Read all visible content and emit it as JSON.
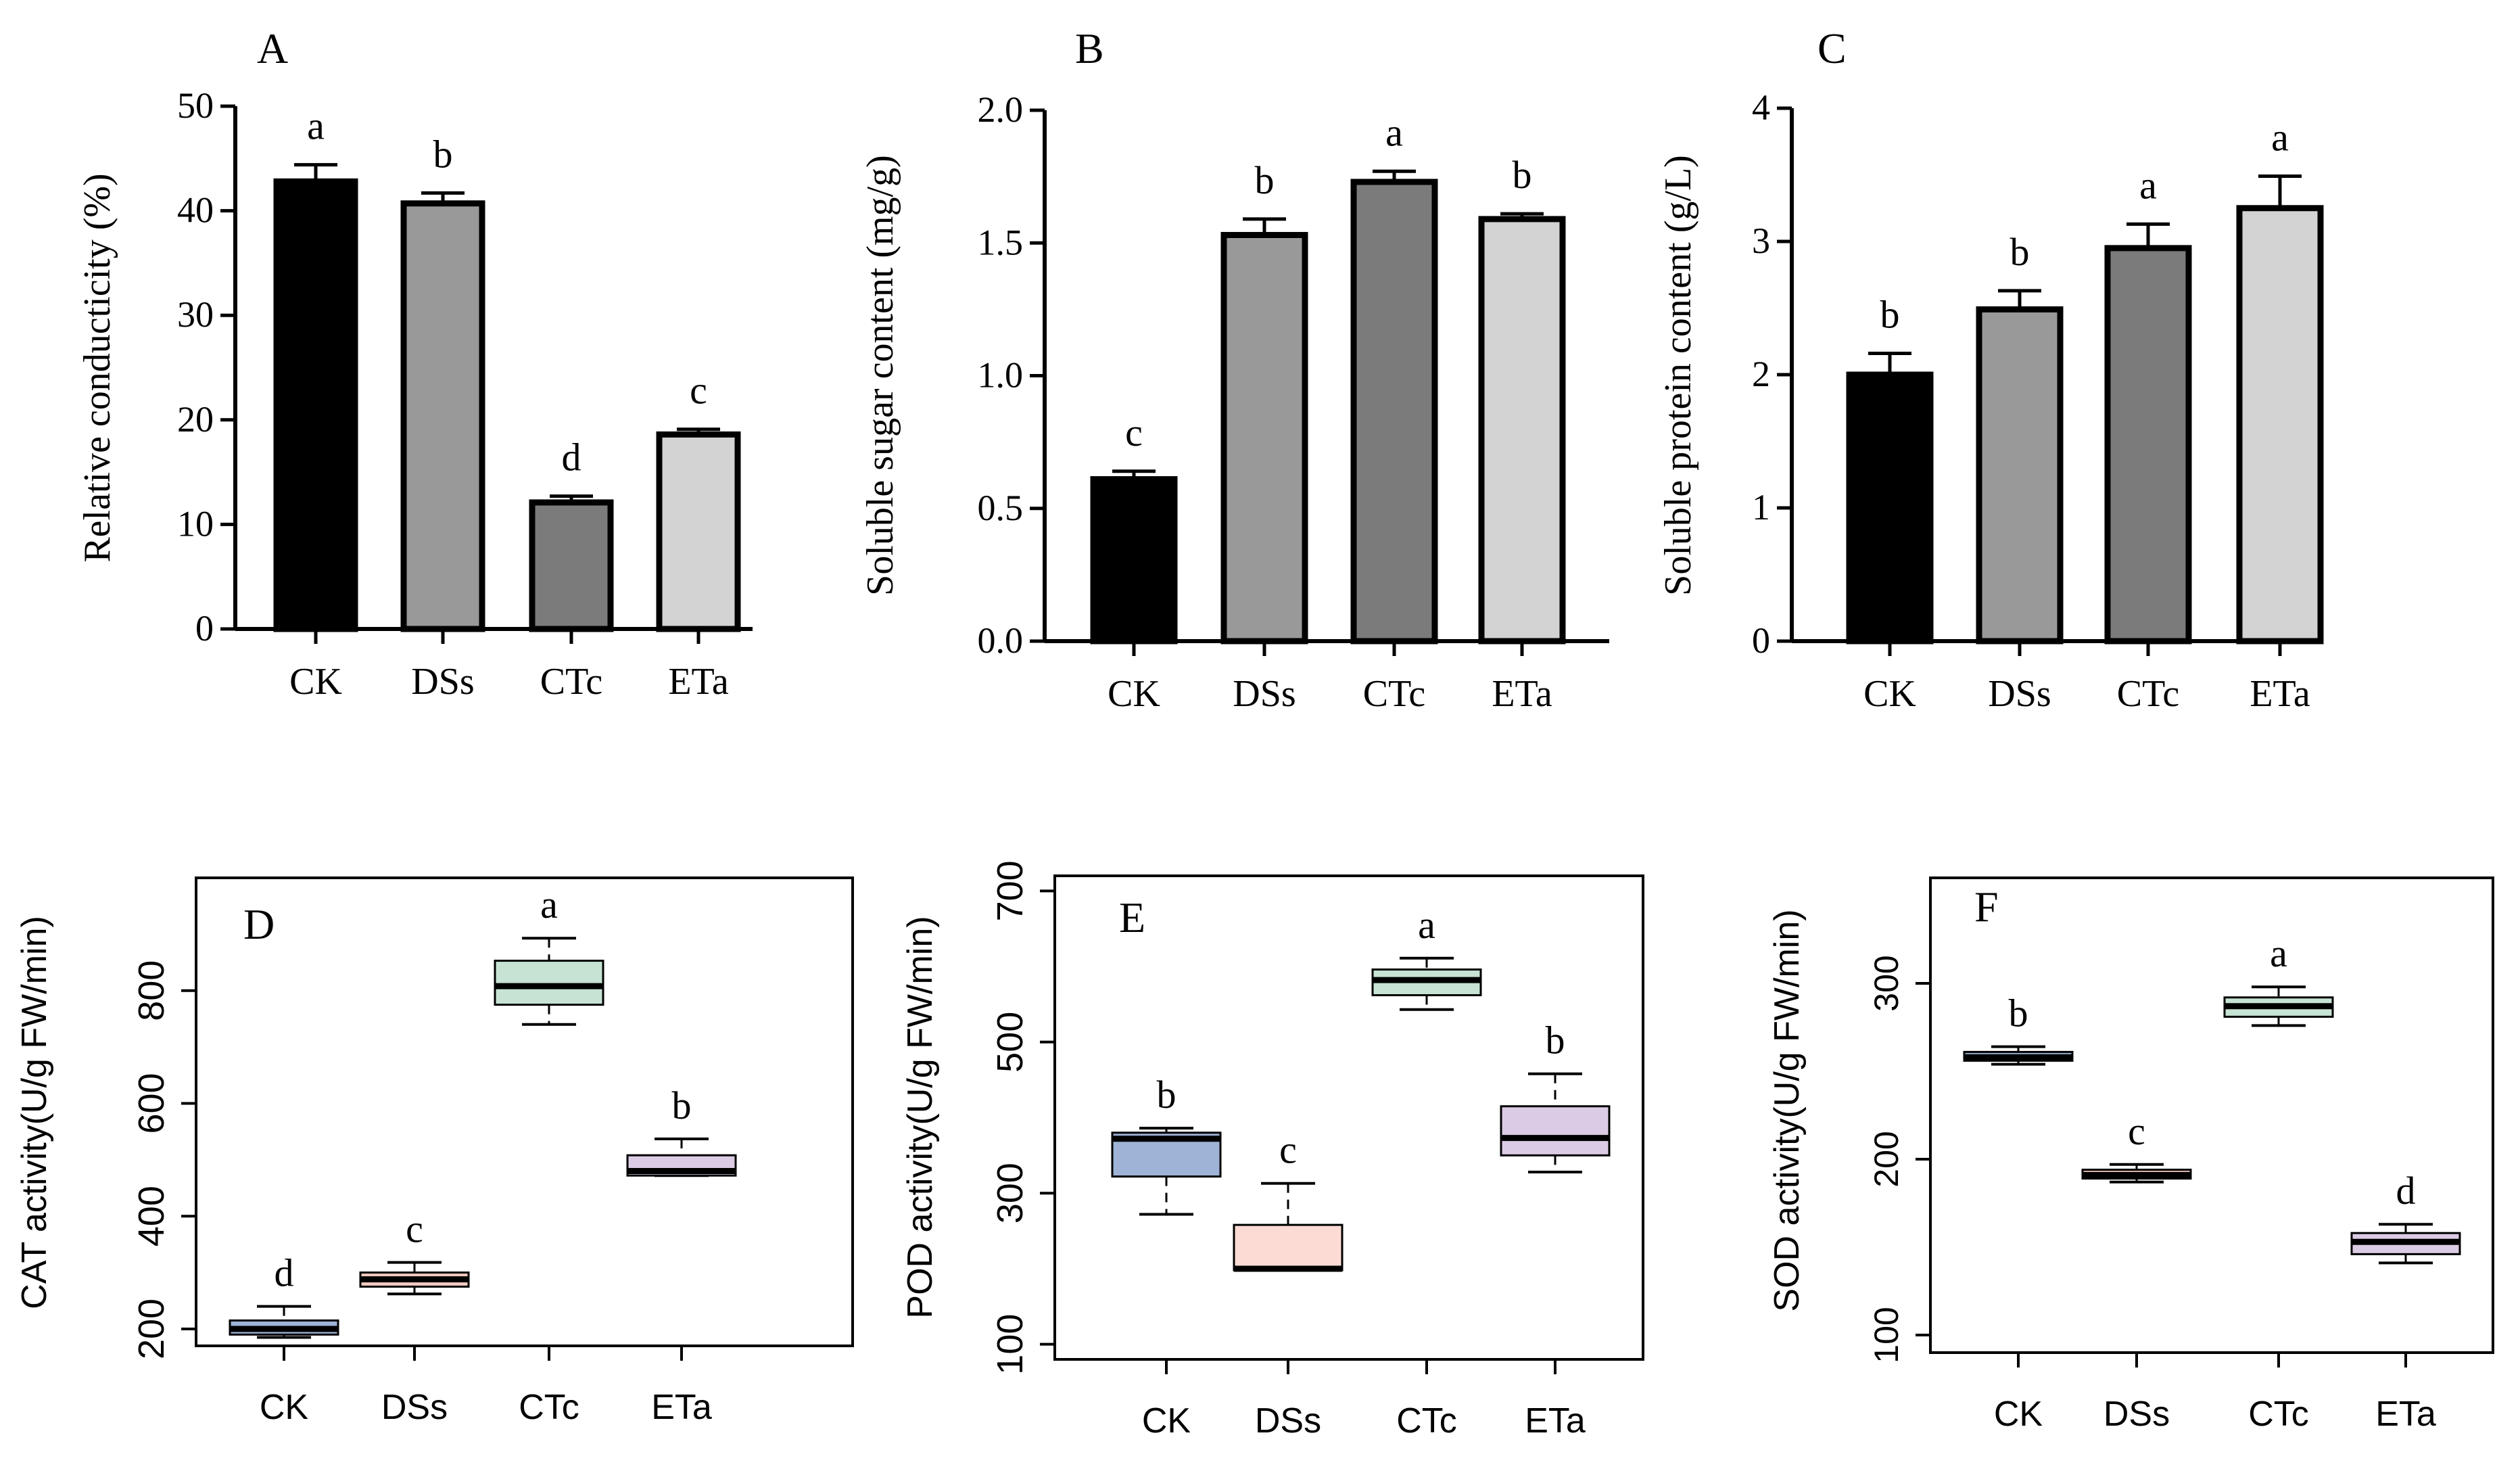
{
  "chart_data": [
    {
      "type": "bar",
      "panel": "A",
      "ylabel": "Relative conducticity (%)",
      "xlabel": "",
      "categories": [
        "CK",
        "DSs",
        "CTc",
        "ETa"
      ],
      "values": [
        42.8,
        40.7,
        12.1,
        18.6
      ],
      "errors": [
        1.6,
        1.0,
        0.6,
        0.5
      ],
      "letters": [
        "a",
        "b",
        "d",
        "c"
      ],
      "colors": [
        "#000000",
        "#999999",
        "#7b7b7b",
        "#d3d3d3"
      ],
      "ylim": [
        0,
        50
      ],
      "yticks": [
        "0",
        "10",
        "20",
        "30",
        "40",
        "50"
      ],
      "ytick_values": [
        0,
        10,
        20,
        30,
        40,
        50
      ]
    },
    {
      "type": "bar",
      "panel": "B",
      "ylabel": "Soluble sugar content (mg/g)",
      "xlabel": "",
      "categories": [
        "CK",
        "DSs",
        "CTc",
        "ETa"
      ],
      "values": [
        0.61,
        1.53,
        1.73,
        1.59
      ],
      "errors": [
        0.03,
        0.06,
        0.04,
        0.02
      ],
      "letters": [
        "c",
        "b",
        "a",
        "b"
      ],
      "colors": [
        "#000000",
        "#999999",
        "#7b7b7b",
        "#d3d3d3"
      ],
      "ylim": [
        0,
        2.0
      ],
      "yticks": [
        "0.0",
        "0.5",
        "1.0",
        "1.5",
        "2.0"
      ],
      "ytick_values": [
        0,
        0.5,
        1.0,
        1.5,
        2.0
      ]
    },
    {
      "type": "bar",
      "panel": "C",
      "ylabel": "Soluble protein content (g/L)",
      "xlabel": "",
      "categories": [
        "CK",
        "DSs",
        "CTc",
        "ETa"
      ],
      "values": [
        2.0,
        2.49,
        2.95,
        3.25
      ],
      "errors": [
        0.16,
        0.14,
        0.18,
        0.24
      ],
      "letters": [
        "b",
        "b",
        "a",
        "a"
      ],
      "colors": [
        "#000000",
        "#999999",
        "#7b7b7b",
        "#d3d3d3"
      ],
      "ylim": [
        0,
        4
      ],
      "yticks": [
        "0",
        "1",
        "2",
        "3",
        "4"
      ],
      "ytick_values": [
        0,
        1,
        2,
        3,
        4
      ]
    },
    {
      "type": "box",
      "panel": "D",
      "ylabel": "CAT activity(U/g FW/min)",
      "xlabel": "",
      "categories": [
        "CK",
        "DSs",
        "CTc",
        "ETa"
      ],
      "boxes": [
        {
          "min": 185,
          "q1": 190,
          "median": 200,
          "q3": 215,
          "max": 240
        },
        {
          "min": 262,
          "q1": 275,
          "median": 288,
          "q3": 300,
          "max": 318
        },
        {
          "min": 740,
          "q1": 775,
          "median": 808,
          "q3": 853,
          "max": 893
        },
        {
          "min": 472,
          "q1": 472,
          "median": 480,
          "q3": 508,
          "max": 537
        }
      ],
      "letters": [
        "d",
        "c",
        "a",
        "b"
      ],
      "colors": [
        "#9eb3d6",
        "#f4cbc1",
        "#c6e3d3",
        "#dccbe4"
      ],
      "ylim": [
        170,
        1000
      ],
      "yticks": [
        "200",
        "400",
        "600",
        "800"
      ],
      "ytick_values": [
        200,
        400,
        600,
        800
      ]
    },
    {
      "type": "box",
      "panel": "E",
      "ylabel": "POD activity(U/g FW/min)",
      "xlabel": "",
      "categories": [
        "CK",
        "DSs",
        "CTc",
        "ETa"
      ],
      "boxes": [
        {
          "min": 272,
          "q1": 322,
          "median": 372,
          "q3": 380,
          "max": 386
        },
        {
          "min": 198,
          "q1": 198,
          "median": 200,
          "q3": 258,
          "max": 313
        },
        {
          "min": 543,
          "q1": 562,
          "median": 582,
          "q3": 596,
          "max": 611
        },
        {
          "min": 328,
          "q1": 350,
          "median": 373,
          "q3": 415,
          "max": 458
        }
      ],
      "letters": [
        "b",
        "c",
        "a",
        "b"
      ],
      "colors": [
        "#9eb3d6",
        "#fddbd5",
        "#c6e3d3",
        "#dccbe4"
      ],
      "ylim": [
        80,
        720
      ],
      "yticks": [
        "100",
        "300",
        "500",
        "700"
      ],
      "ytick_values": [
        100,
        300,
        500,
        700
      ]
    },
    {
      "type": "box",
      "panel": "F",
      "ylabel": "SOD activity(U/g FW/min)",
      "xlabel": "",
      "categories": [
        "CK",
        "DSs",
        "CTc",
        "ETa"
      ],
      "boxes": [
        {
          "min": 254,
          "q1": 256,
          "median": 258,
          "q3": 261,
          "max": 264
        },
        {
          "min": 187,
          "q1": 189,
          "median": 191,
          "q3": 194,
          "max": 197
        },
        {
          "min": 276,
          "q1": 281,
          "median": 287,
          "q3": 292,
          "max": 298
        },
        {
          "min": 141,
          "q1": 146,
          "median": 153,
          "q3": 158,
          "max": 163
        }
      ],
      "letters": [
        "b",
        "c",
        "a",
        "d"
      ],
      "colors": [
        "#9eb3d6",
        "#f4cbc1",
        "#c6e3d3",
        "#dccbe4"
      ],
      "ylim": [
        90,
        360
      ],
      "yticks": [
        "100",
        "200",
        "300"
      ],
      "ytick_values": [
        100,
        200,
        300
      ]
    }
  ]
}
